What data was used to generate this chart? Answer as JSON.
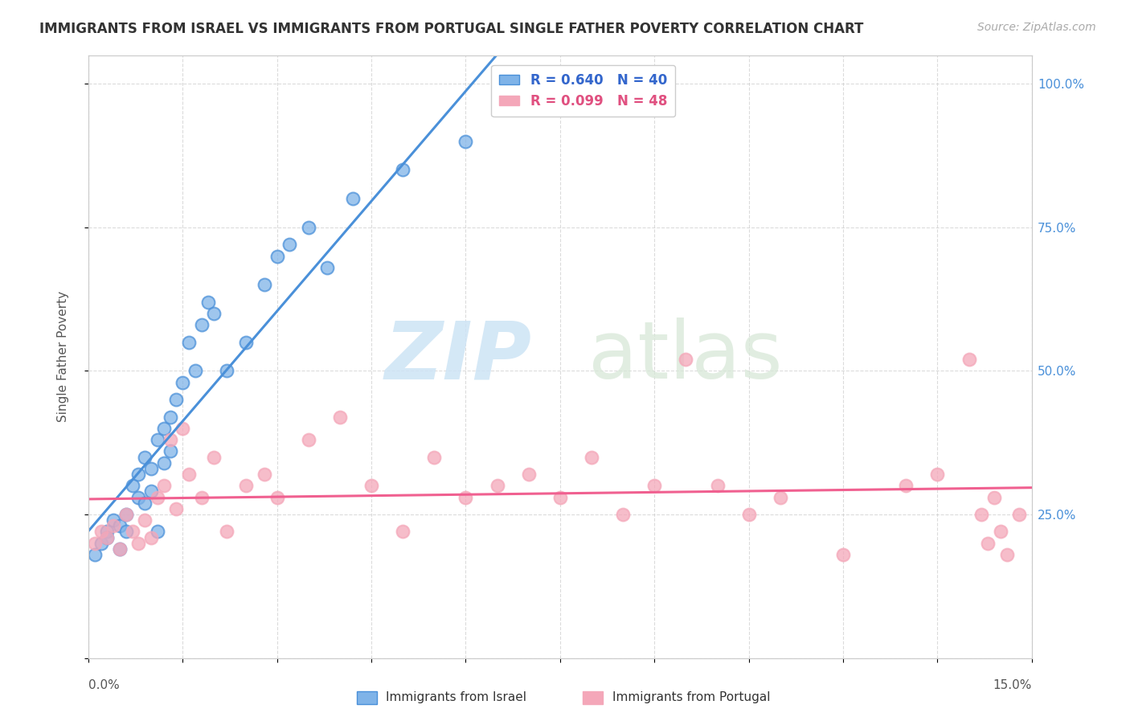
{
  "title": "IMMIGRANTS FROM ISRAEL VS IMMIGRANTS FROM PORTUGAL SINGLE FATHER POVERTY CORRELATION CHART",
  "source": "Source: ZipAtlas.com",
  "ylabel": "Single Father Poverty",
  "legend_label_israel": "Immigrants from Israel",
  "legend_label_portugal": "Immigrants from Portugal",
  "color_israel": "#7fb3e8",
  "color_portugal": "#f4a7b9",
  "color_israel_line": "#4a90d9",
  "color_portugal_line": "#f06090",
  "color_legend_text_blue": "#3366cc",
  "color_legend_text_pink": "#e05080",
  "background": "#ffffff",
  "israel_scatter_x": [
    0.001,
    0.002,
    0.003,
    0.003,
    0.004,
    0.005,
    0.005,
    0.006,
    0.006,
    0.007,
    0.008,
    0.008,
    0.009,
    0.009,
    0.01,
    0.01,
    0.011,
    0.011,
    0.012,
    0.012,
    0.013,
    0.013,
    0.014,
    0.015,
    0.016,
    0.017,
    0.018,
    0.019,
    0.02,
    0.022,
    0.025,
    0.028,
    0.03,
    0.032,
    0.035,
    0.038,
    0.042,
    0.05,
    0.06,
    0.075
  ],
  "israel_scatter_y": [
    0.18,
    0.2,
    0.22,
    0.21,
    0.24,
    0.19,
    0.23,
    0.25,
    0.22,
    0.3,
    0.28,
    0.32,
    0.27,
    0.35,
    0.33,
    0.29,
    0.38,
    0.22,
    0.4,
    0.34,
    0.36,
    0.42,
    0.45,
    0.48,
    0.55,
    0.5,
    0.58,
    0.62,
    0.6,
    0.5,
    0.55,
    0.65,
    0.7,
    0.72,
    0.75,
    0.68,
    0.8,
    0.85,
    0.9,
    1.0
  ],
  "portugal_scatter_x": [
    0.001,
    0.002,
    0.003,
    0.004,
    0.005,
    0.006,
    0.007,
    0.008,
    0.009,
    0.01,
    0.011,
    0.012,
    0.013,
    0.014,
    0.015,
    0.016,
    0.018,
    0.02,
    0.022,
    0.025,
    0.028,
    0.03,
    0.035,
    0.04,
    0.045,
    0.05,
    0.055,
    0.06,
    0.065,
    0.07,
    0.075,
    0.08,
    0.085,
    0.09,
    0.095,
    0.1,
    0.105,
    0.11,
    0.12,
    0.13,
    0.135,
    0.14,
    0.142,
    0.143,
    0.144,
    0.145,
    0.146,
    0.148
  ],
  "portugal_scatter_y": [
    0.2,
    0.22,
    0.21,
    0.23,
    0.19,
    0.25,
    0.22,
    0.2,
    0.24,
    0.21,
    0.28,
    0.3,
    0.38,
    0.26,
    0.4,
    0.32,
    0.28,
    0.35,
    0.22,
    0.3,
    0.32,
    0.28,
    0.38,
    0.42,
    0.3,
    0.22,
    0.35,
    0.28,
    0.3,
    0.32,
    0.28,
    0.35,
    0.25,
    0.3,
    0.52,
    0.3,
    0.25,
    0.28,
    0.18,
    0.3,
    0.32,
    0.52,
    0.25,
    0.2,
    0.28,
    0.22,
    0.18,
    0.25
  ],
  "xlim": [
    0.0,
    0.15
  ],
  "ylim": [
    0.0,
    1.05
  ]
}
